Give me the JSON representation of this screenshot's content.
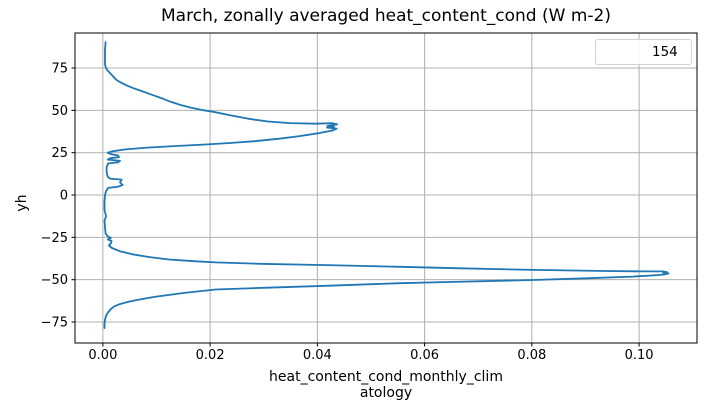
{
  "colors": {
    "line": "#1f77b4",
    "grid": "#b0b0b0",
    "spine": "#000000",
    "text": "#000000",
    "legend_border": "#d4d4d4",
    "background": "#ffffff"
  },
  "chart_data": {
    "type": "line",
    "title": "March, zonally averaged heat_content_cond (W m-2)",
    "xlabel": "heat_content_cond_monthly_climatology",
    "xlabel_lines": [
      "heat_content_cond_monthly_clim",
      "atology"
    ],
    "ylabel": "yh",
    "grid": true,
    "xlim": [
      -0.0052,
      0.1108
    ],
    "ylim": [
      -87.4,
      95.7
    ],
    "x_ticks": [
      0.0,
      0.02,
      0.04,
      0.06,
      0.08,
      0.1
    ],
    "x_tick_labels": [
      "0.00",
      "0.02",
      "0.04",
      "0.06",
      "0.08",
      "0.10"
    ],
    "y_ticks": [
      -75,
      -50,
      -25,
      0,
      25,
      50,
      75
    ],
    "y_tick_labels": [
      "−75",
      "−50",
      "−25",
      "0",
      "25",
      "50",
      "75"
    ],
    "legend": {
      "position": "upper right",
      "entries": [
        {
          "label": "154",
          "color": "#1f77b4"
        }
      ]
    },
    "series": [
      {
        "name": "154",
        "color": "#1f77b4",
        "points": [
          [
            0.0005,
            90.3
          ],
          [
            0.0004,
            86
          ],
          [
            0.0004,
            81
          ],
          [
            0.0004,
            77
          ],
          [
            0.0006,
            74.8
          ],
          [
            0.0009,
            73.5
          ],
          [
            0.0015,
            71.5
          ],
          [
            0.0024,
            68.3
          ],
          [
            0.0032,
            66.7
          ],
          [
            0.0043,
            64.9
          ],
          [
            0.0057,
            63.1
          ],
          [
            0.007,
            61.7
          ],
          [
            0.0084,
            60.1
          ],
          [
            0.0097,
            58.6
          ],
          [
            0.0113,
            56.8
          ],
          [
            0.0127,
            55.0
          ],
          [
            0.0145,
            53.2
          ],
          [
            0.0165,
            51.6
          ],
          [
            0.0187,
            50.1
          ],
          [
            0.0209,
            49.0
          ],
          [
            0.0237,
            47.1
          ],
          [
            0.0272,
            45.0
          ],
          [
            0.0308,
            43.4
          ],
          [
            0.0349,
            42.5
          ],
          [
            0.0397,
            42.1
          ],
          [
            0.0428,
            42.4
          ],
          [
            0.0437,
            41.7
          ],
          [
            0.0419,
            40.8
          ],
          [
            0.0431,
            40.3
          ],
          [
            0.0418,
            39.9
          ],
          [
            0.0436,
            39.2
          ],
          [
            0.0428,
            38.1
          ],
          [
            0.0402,
            36.5
          ],
          [
            0.0367,
            34.8
          ],
          [
            0.0327,
            33.2
          ],
          [
            0.0283,
            31.8
          ],
          [
            0.0237,
            30.7
          ],
          [
            0.0187,
            29.8
          ],
          [
            0.0132,
            28.9
          ],
          [
            0.0083,
            28.0
          ],
          [
            0.004,
            26.9
          ],
          [
            0.0018,
            25.8
          ],
          [
            0.0009,
            25.0
          ],
          [
            0.0014,
            24.2
          ],
          [
            0.0028,
            23.4
          ],
          [
            0.003,
            22.4
          ],
          [
            0.0013,
            21.7
          ],
          [
            0.0009,
            20.9
          ],
          [
            0.0032,
            20.2
          ],
          [
            0.0028,
            19.3
          ],
          [
            0.001,
            18.7
          ],
          [
            0.0007,
            16.5
          ],
          [
            0.0007,
            13.5
          ],
          [
            0.0009,
            10.8
          ],
          [
            0.0013,
            9.7
          ],
          [
            0.0035,
            9.1
          ],
          [
            0.0032,
            7.4
          ],
          [
            0.0037,
            5.9
          ],
          [
            0.0028,
            4.9
          ],
          [
            0.001,
            4.2
          ],
          [
            0.0006,
            2.3
          ],
          [
            0.0004,
            0.0
          ],
          [
            0.0003,
            -4.0
          ],
          [
            0.0003,
            -9.0
          ],
          [
            0.0006,
            -12.5
          ],
          [
            0.0003,
            -15.0
          ],
          [
            0.0004,
            -19.0
          ],
          [
            0.0005,
            -22.8
          ],
          [
            0.0009,
            -24.4
          ],
          [
            0.0015,
            -25.4
          ],
          [
            0.0009,
            -26.2
          ],
          [
            0.0016,
            -27.1
          ],
          [
            0.0015,
            -28.6
          ],
          [
            0.0011,
            -29.8
          ],
          [
            0.0017,
            -31.3
          ],
          [
            0.0031,
            -33.1
          ],
          [
            0.0055,
            -35.0
          ],
          [
            0.0086,
            -36.6
          ],
          [
            0.0123,
            -38.1
          ],
          [
            0.017,
            -39.1
          ],
          [
            0.021,
            -39.8
          ],
          [
            0.0292,
            -40.6
          ],
          [
            0.0418,
            -41.4
          ],
          [
            0.0555,
            -42.4
          ],
          [
            0.0667,
            -43.3
          ],
          [
            0.0803,
            -44.2
          ],
          [
            0.0937,
            -44.9
          ],
          [
            0.101,
            -45.1
          ],
          [
            0.1044,
            -45.1
          ],
          [
            0.1052,
            -45.5
          ],
          [
            0.1045,
            -45.9
          ],
          [
            0.1055,
            -46.3
          ],
          [
            0.1048,
            -46.9
          ],
          [
            0.1035,
            -47.3
          ],
          [
            0.0988,
            -48.2
          ],
          [
            0.09,
            -49.2
          ],
          [
            0.0802,
            -50.2
          ],
          [
            0.0655,
            -51.3
          ],
          [
            0.0553,
            -52.1
          ],
          [
            0.0416,
            -53.6
          ],
          [
            0.0299,
            -54.8
          ],
          [
            0.021,
            -55.8
          ],
          [
            0.0152,
            -57.8
          ],
          [
            0.0096,
            -60.2
          ],
          [
            0.0061,
            -62.1
          ],
          [
            0.0046,
            -63.2
          ],
          [
            0.003,
            -64.6
          ],
          [
            0.0021,
            -65.8
          ],
          [
            0.0014,
            -67.6
          ],
          [
            0.001,
            -69.2
          ],
          [
            0.0006,
            -71.2
          ],
          [
            0.0004,
            -73.6
          ],
          [
            0.0003,
            -76.2
          ],
          [
            0.0003,
            -78.6
          ]
        ]
      }
    ]
  }
}
